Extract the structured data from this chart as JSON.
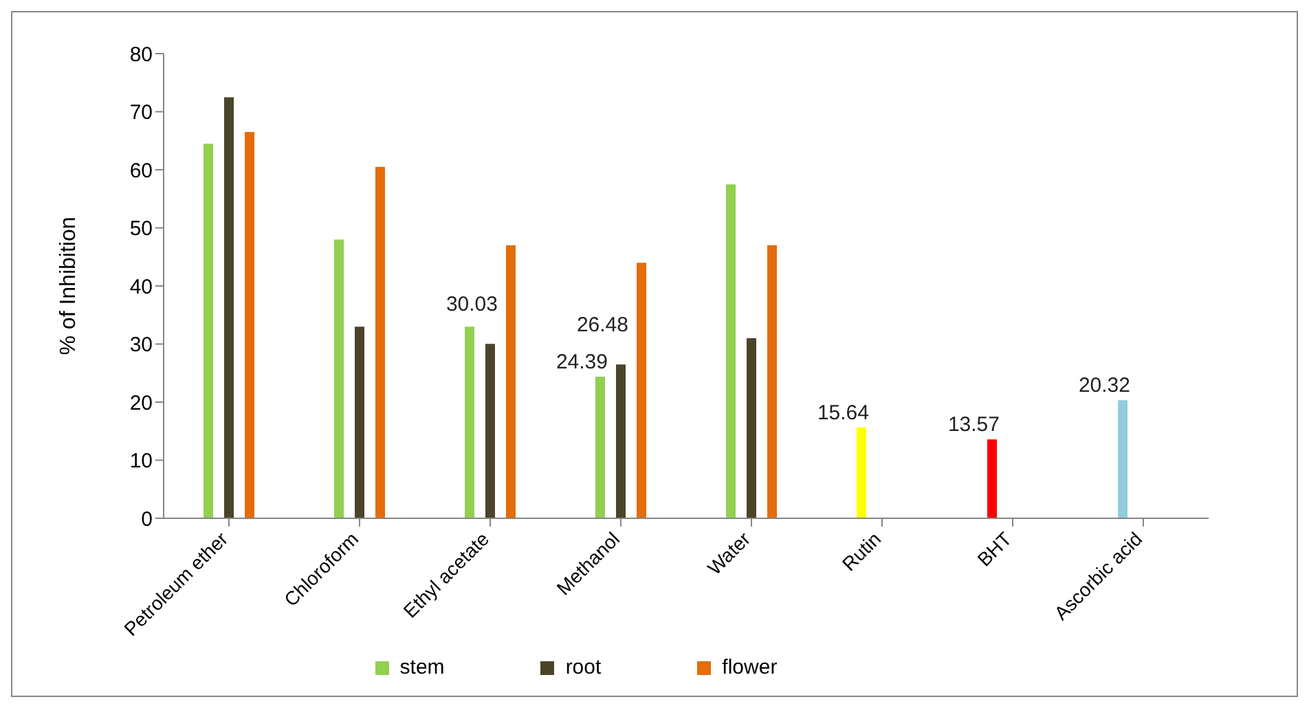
{
  "chart_data": {
    "type": "bar",
    "ylabel": "% of Inhibition",
    "categories": [
      "Petroleum ether",
      "Chloroform",
      "Ethyl acetate",
      "Methanol",
      "Water",
      "Rutin",
      "BHT",
      "Ascorbic acid"
    ],
    "series": [
      {
        "name": "stem",
        "color": "#92d050",
        "colors": [
          "#92d050",
          "#92d050",
          "#92d050",
          "#92d050",
          "#92d050",
          "#ffff00",
          "#ff0000",
          "#92cddc"
        ],
        "values": [
          64.5,
          48,
          33,
          24.39,
          57.5,
          15.64,
          13.57,
          20.32
        ],
        "value_labels": [
          null,
          null,
          null,
          "24.39",
          null,
          "15.64",
          "13.57",
          "20.32"
        ]
      },
      {
        "name": "root",
        "color": "#4a452a",
        "values": [
          72.5,
          33,
          30.03,
          26.48,
          31,
          null,
          null,
          null
        ],
        "value_labels": [
          null,
          null,
          "30.03",
          "26.48",
          null,
          null,
          null,
          null
        ]
      },
      {
        "name": "flower",
        "color": "#e46c0a",
        "values": [
          66.5,
          60.5,
          47,
          44,
          47,
          null,
          null,
          null
        ],
        "value_labels": [
          null,
          null,
          null,
          null,
          null,
          null,
          null,
          null
        ]
      }
    ],
    "ylim": [
      0,
      80
    ],
    "yticks": [
      0,
      10,
      20,
      30,
      40,
      50,
      60,
      70,
      80
    ],
    "grid": false,
    "legend": "bottom"
  }
}
